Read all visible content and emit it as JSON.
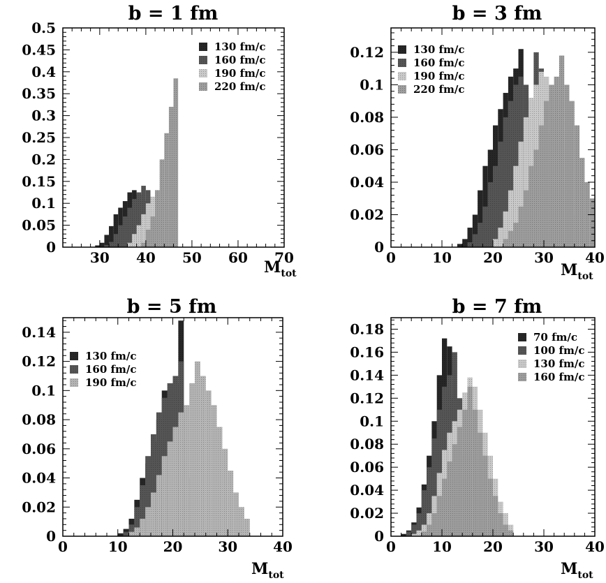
{
  "chart_data": [
    {
      "type": "bar",
      "title": "b = 1 fm",
      "xlabel": "M",
      "xlabel_sub": "tot",
      "xlim": [
        22,
        70
      ],
      "ylim": [
        0,
        0.5
      ],
      "xticks": [
        30,
        40,
        50,
        60,
        70
      ],
      "yticks": [
        0,
        0.05,
        0.1,
        0.15,
        0.2,
        0.25,
        0.3,
        0.35,
        0.4,
        0.45,
        0.5
      ],
      "legend": "top-right",
      "series": [
        {
          "name": "130 fm/c",
          "color": "#262626",
          "start": 29,
          "values": [
            0.004,
            0.01,
            0.028,
            0.048,
            0.075,
            0.09,
            0.105,
            0.125,
            0.13,
            0.12,
            0.105,
            0.085
          ]
        },
        {
          "name": "160 fm/c",
          "color": "#555555",
          "start": 31,
          "values": [
            0.005,
            0.012,
            0.03,
            0.05,
            0.07,
            0.09,
            0.11,
            0.125,
            0.14,
            0.13,
            0.11,
            0.09
          ]
        },
        {
          "name": "190 fm/c",
          "color": "#c9c9c9",
          "start": 36,
          "values": [
            0.01,
            0.03,
            0.05,
            0.075,
            0.1,
            0.115,
            0.125,
            0.105,
            0.085
          ]
        },
        {
          "name": "220 fm/c",
          "color": "#9d9d9d",
          "start": 39,
          "values": [
            0.01,
            0.04,
            0.07,
            0.13,
            0.2,
            0.26,
            0.32,
            0.385
          ]
        }
      ]
    },
    {
      "type": "bar",
      "title": "b = 3 fm",
      "xlabel": "M",
      "xlabel_sub": "tot",
      "xlim": [
        0,
        40
      ],
      "ylim": [
        0,
        0.135
      ],
      "xticks": [
        0,
        10,
        20,
        30,
        40
      ],
      "yticks": [
        0,
        0.02,
        0.04,
        0.06,
        0.08,
        0.1,
        0.12
      ],
      "legend": "top-left",
      "series": [
        {
          "name": "130 fm/c",
          "color": "#262626",
          "start": 13,
          "values": [
            0.002,
            0.005,
            0.012,
            0.02,
            0.035,
            0.05,
            0.06,
            0.075,
            0.085,
            0.095,
            0.105,
            0.11,
            0.122,
            0.08,
            0.05,
            0.03
          ]
        },
        {
          "name": "160 fm/c",
          "color": "#555555",
          "start": 15,
          "values": [
            0.003,
            0.008,
            0.015,
            0.025,
            0.04,
            0.05,
            0.065,
            0.08,
            0.09,
            0.1,
            0.105,
            0.1,
            0.09,
            0.12,
            0.11,
            0.07,
            0.04
          ]
        },
        {
          "name": "190 fm/c",
          "color": "#c9c9c9",
          "start": 20,
          "values": [
            0.005,
            0.012,
            0.022,
            0.035,
            0.05,
            0.065,
            0.08,
            0.092,
            0.1,
            0.108,
            0.105,
            0.095,
            0.08,
            0.06,
            0.04,
            0.02
          ]
        },
        {
          "name": "220 fm/c",
          "color": "#9d9d9d",
          "start": 22,
          "values": [
            0.005,
            0.01,
            0.015,
            0.025,
            0.035,
            0.05,
            0.06,
            0.075,
            0.09,
            0.1,
            0.105,
            0.118,
            0.1,
            0.09,
            0.075,
            0.055,
            0.04,
            0.03
          ]
        }
      ]
    },
    {
      "type": "bar",
      "title": "b = 5 fm",
      "xlabel": "M",
      "xlabel_sub": "tot",
      "xlim": [
        0,
        40
      ],
      "ylim": [
        0,
        0.15
      ],
      "xticks": [
        0,
        10,
        20,
        30,
        40
      ],
      "yticks": [
        0,
        0.02,
        0.04,
        0.06,
        0.08,
        0.1,
        0.12,
        0.14
      ],
      "legend": "top-left",
      "series": [
        {
          "name": "130 fm/c",
          "color": "#262626",
          "start": 10,
          "values": [
            0.002,
            0.005,
            0.012,
            0.025,
            0.04,
            0.05,
            0.065,
            0.08,
            0.1,
            0.1,
            0.105,
            0.148
          ]
        },
        {
          "name": "160 fm/c",
          "color": "#555555",
          "start": 11,
          "values": [
            0.003,
            0.008,
            0.02,
            0.035,
            0.055,
            0.07,
            0.085,
            0.095,
            0.105,
            0.11,
            0.12,
            0.08,
            0.04
          ]
        },
        {
          "name": "190 fm/c",
          "color": "#b4b4b4",
          "start": 12,
          "values": [
            0.003,
            0.006,
            0.012,
            0.02,
            0.03,
            0.042,
            0.055,
            0.065,
            0.075,
            0.085,
            0.09,
            0.105,
            0.12,
            0.11,
            0.1,
            0.09,
            0.075,
            0.06,
            0.045,
            0.03,
            0.02,
            0.012
          ]
        }
      ]
    },
    {
      "type": "bar",
      "title": "b = 7 fm",
      "xlabel": "M",
      "xlabel_sub": "tot",
      "xlim": [
        0,
        40
      ],
      "ylim": [
        0,
        0.19
      ],
      "xticks": [
        0,
        10,
        20,
        30,
        40
      ],
      "yticks": [
        0,
        0.02,
        0.04,
        0.06,
        0.08,
        0.1,
        0.12,
        0.14,
        0.16,
        0.18
      ],
      "legend": "top-right",
      "series": [
        {
          "name": "70 fm/c",
          "color": "#262626",
          "start": 2,
          "values": [
            0.002,
            0.005,
            0.012,
            0.025,
            0.045,
            0.07,
            0.1,
            0.14,
            0.172,
            0.165,
            0.12,
            0.06
          ]
        },
        {
          "name": "100 fm/c",
          "color": "#555555",
          "start": 3,
          "values": [
            0.004,
            0.01,
            0.02,
            0.04,
            0.06,
            0.085,
            0.11,
            0.13,
            0.14,
            0.16,
            0.12,
            0.07
          ]
        },
        {
          "name": "130 fm/c",
          "color": "#c9c9c9",
          "start": 4,
          "values": [
            0.002,
            0.005,
            0.01,
            0.02,
            0.035,
            0.055,
            0.075,
            0.09,
            0.1,
            0.11,
            0.125,
            0.138,
            0.13,
            0.11,
            0.09,
            0.07,
            0.05,
            0.03,
            0.02,
            0.01
          ]
        },
        {
          "name": "160 fm/c",
          "color": "#9d9d9d",
          "start": 6,
          "values": [
            0.004,
            0.01,
            0.02,
            0.035,
            0.05,
            0.065,
            0.08,
            0.095,
            0.11,
            0.13,
            0.11,
            0.09,
            0.07,
            0.05,
            0.035,
            0.02,
            0.01,
            0.005
          ]
        }
      ]
    }
  ]
}
